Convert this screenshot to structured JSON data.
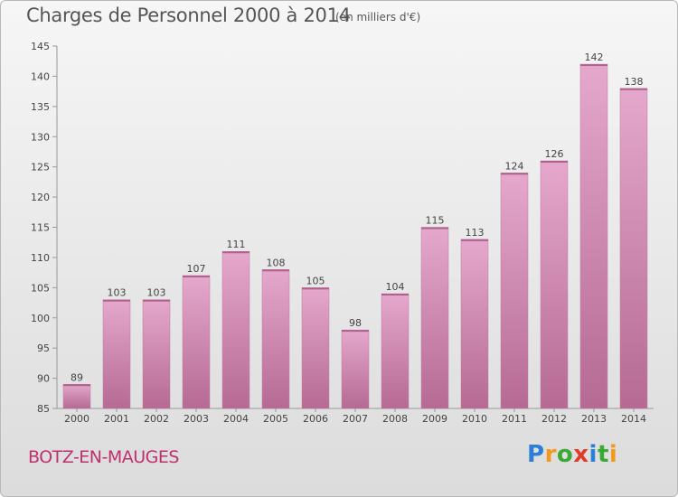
{
  "header": {
    "title": "Charges de Personnel 2000 à 2014",
    "subtitle": "(en milliers d'€)"
  },
  "footer": {
    "commune": "BOTZ-EN-MAUGES",
    "logo_letters": [
      "P",
      "r",
      "o",
      "x",
      "i",
      "t",
      "i"
    ],
    "logo_colors": [
      "#2c7fd6",
      "#f39a1e",
      "#3aaa35",
      "#e23b2a",
      "#2c7fd6",
      "#3aaa35",
      "#f39a1e"
    ]
  },
  "colors": {
    "bar_top": "#e5a8cc",
    "bar_bottom": "#b56a93",
    "text": "#444444"
  },
  "chart_data": {
    "type": "bar",
    "title": "Charges de Personnel 2000 à 2014",
    "subtitle": "(en milliers d'€)",
    "categories": [
      "2000",
      "2001",
      "2002",
      "2003",
      "2004",
      "2005",
      "2006",
      "2007",
      "2008",
      "2009",
      "2010",
      "2011",
      "2012",
      "2013",
      "2014"
    ],
    "values": [
      89,
      103,
      103,
      107,
      111,
      108,
      105,
      98,
      104,
      115,
      113,
      124,
      126,
      142,
      138
    ],
    "ylim": [
      85,
      145
    ],
    "yticks": [
      85,
      90,
      95,
      100,
      105,
      110,
      115,
      120,
      125,
      130,
      135,
      140,
      145
    ],
    "grid": false
  }
}
